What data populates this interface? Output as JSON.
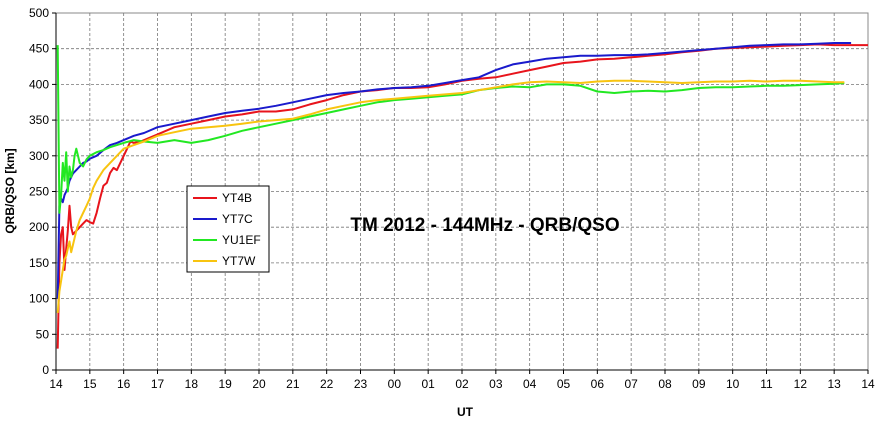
{
  "chart_data": {
    "type": "line",
    "title": "TM 2012 - 144MHz - QRB/QSO",
    "xlabel": "UT",
    "ylabel": "QRB/QSO  [km]",
    "ylim": [
      0,
      500
    ],
    "yticks": [
      0,
      50,
      100,
      150,
      200,
      250,
      300,
      350,
      400,
      450,
      500
    ],
    "xlim": [
      0,
      24
    ],
    "xtick_labels": [
      "14",
      "15",
      "16",
      "17",
      "18",
      "19",
      "20",
      "21",
      "22",
      "23",
      "00",
      "01",
      "02",
      "03",
      "04",
      "05",
      "06",
      "07",
      "08",
      "09",
      "10",
      "11",
      "12",
      "13",
      "14"
    ],
    "grid": true,
    "legend_position": "center-left",
    "series": [
      {
        "name": "YT4B",
        "color": "#e8141c",
        "x": [
          0.05,
          0.1,
          0.15,
          0.2,
          0.25,
          0.3,
          0.35,
          0.4,
          0.45,
          0.5,
          0.6,
          0.7,
          0.8,
          0.9,
          1.0,
          1.1,
          1.2,
          1.3,
          1.4,
          1.5,
          1.6,
          1.7,
          1.8,
          1.9,
          2.0,
          2.1,
          2.2,
          2.3,
          2.5,
          3,
          3.5,
          4,
          4.5,
          5,
          5.5,
          6,
          6.5,
          7,
          7.5,
          8,
          8.5,
          9,
          9.5,
          10,
          10.5,
          11,
          11.5,
          12,
          12.5,
          13,
          13.5,
          14,
          14.5,
          15,
          15.5,
          16,
          16.5,
          17,
          17.5,
          18,
          18.5,
          19,
          19.5,
          20,
          20.5,
          21,
          21.5,
          22,
          22.5,
          23,
          23.5,
          24
        ],
        "values": [
          30,
          150,
          190,
          200,
          140,
          170,
          195,
          230,
          200,
          190,
          195,
          200,
          205,
          210,
          207,
          205,
          220,
          240,
          258,
          262,
          276,
          283,
          280,
          290,
          300,
          310,
          320,
          318,
          320,
          330,
          340,
          345,
          350,
          355,
          358,
          362,
          362,
          365,
          372,
          378,
          385,
          390,
          392,
          395,
          395,
          396,
          400,
          405,
          408,
          410,
          415,
          420,
          425,
          430,
          432,
          435,
          436,
          438,
          440,
          442,
          445,
          447,
          450,
          451,
          452,
          453,
          454,
          455,
          456,
          455,
          455,
          455
        ]
      },
      {
        "name": "YT7C",
        "color": "#1a1acc",
        "x": [
          0.05,
          0.1,
          0.15,
          0.2,
          0.25,
          0.3,
          0.35,
          0.4,
          0.45,
          0.5,
          0.6,
          0.7,
          0.8,
          0.9,
          1.0,
          1.2,
          1.4,
          1.6,
          1.8,
          2.0,
          2.3,
          2.6,
          3,
          3.5,
          4,
          4.5,
          5,
          5.5,
          6,
          6.5,
          7,
          7.5,
          8,
          8.5,
          9,
          9.5,
          10,
          10.5,
          11,
          11.5,
          12,
          12.5,
          13,
          13.5,
          14,
          14.5,
          15,
          15.5,
          16,
          16.5,
          17,
          17.5,
          18,
          18.5,
          19,
          19.5,
          20,
          20.5,
          21,
          21.5,
          22,
          22.5,
          23,
          23.5
        ],
        "values": [
          100,
          230,
          240,
          235,
          245,
          250,
          255,
          265,
          270,
          275,
          280,
          285,
          290,
          292,
          296,
          300,
          308,
          315,
          318,
          322,
          328,
          332,
          340,
          345,
          350,
          355,
          360,
          363,
          366,
          370,
          375,
          380,
          385,
          388,
          390,
          393,
          395,
          396,
          398,
          402,
          406,
          410,
          420,
          428,
          432,
          436,
          438,
          440,
          440,
          441,
          441,
          442,
          444,
          446,
          448,
          450,
          452,
          454,
          455,
          456,
          456,
          457,
          458,
          458
        ]
      },
      {
        "name": "YU1EF",
        "color": "#22e822",
        "x": [
          0.05,
          0.1,
          0.15,
          0.2,
          0.25,
          0.3,
          0.35,
          0.4,
          0.45,
          0.5,
          0.55,
          0.6,
          0.7,
          0.8,
          0.9,
          1.0,
          1.2,
          1.4,
          1.6,
          1.8,
          2.0,
          2.3,
          2.6,
          3,
          3.5,
          4,
          4.5,
          5,
          5.5,
          6,
          6.5,
          7,
          7.5,
          8,
          8.5,
          9,
          9.5,
          10,
          10.5,
          11,
          11.5,
          12,
          12.5,
          13,
          13.5,
          14,
          14.5,
          15,
          15.5,
          16,
          16.5,
          17,
          17.5,
          18,
          18.5,
          19,
          19.5,
          20,
          20.5,
          21,
          21.5,
          22,
          22.5,
          23,
          23.3
        ],
        "values": [
          455,
          220,
          245,
          290,
          265,
          305,
          250,
          285,
          270,
          280,
          300,
          310,
          290,
          285,
          295,
          300,
          305,
          308,
          312,
          315,
          318,
          322,
          320,
          318,
          322,
          318,
          322,
          328,
          335,
          340,
          345,
          350,
          355,
          360,
          365,
          370,
          375,
          378,
          380,
          382,
          384,
          386,
          392,
          395,
          397,
          396,
          400,
          400,
          398,
          390,
          388,
          390,
          391,
          390,
          392,
          395,
          396,
          396,
          397,
          398,
          398,
          399,
          400,
          401,
          402
        ]
      },
      {
        "name": "YT7W",
        "color": "#f8c410",
        "x": [
          0.05,
          0.1,
          0.15,
          0.2,
          0.25,
          0.3,
          0.35,
          0.4,
          0.45,
          0.5,
          0.6,
          0.7,
          0.8,
          0.9,
          1.0,
          1.1,
          1.2,
          1.4,
          1.6,
          1.8,
          2.0,
          2.3,
          2.6,
          3,
          3.5,
          4,
          4.5,
          5,
          5.5,
          6,
          6.5,
          7,
          7.5,
          8,
          8.5,
          9,
          9.5,
          10,
          10.5,
          11,
          11.5,
          12,
          12.5,
          13,
          13.5,
          14,
          14.5,
          15,
          15.5,
          16,
          16.5,
          17,
          17.5,
          18,
          18.5,
          19,
          19.5,
          20,
          20.5,
          21,
          21.5,
          22,
          22.5,
          23,
          23.3
        ],
        "values": [
          80,
          110,
          125,
          140,
          155,
          160,
          170,
          180,
          165,
          175,
          195,
          210,
          220,
          230,
          240,
          255,
          265,
          280,
          290,
          300,
          310,
          315,
          320,
          328,
          333,
          338,
          340,
          342,
          345,
          348,
          350,
          352,
          358,
          365,
          370,
          375,
          378,
          380,
          382,
          384,
          386,
          388,
          392,
          396,
          400,
          403,
          404,
          403,
          402,
          404,
          405,
          405,
          404,
          403,
          402,
          403,
          404,
          404,
          405,
          404,
          405,
          405,
          404,
          403,
          403
        ]
      }
    ]
  }
}
